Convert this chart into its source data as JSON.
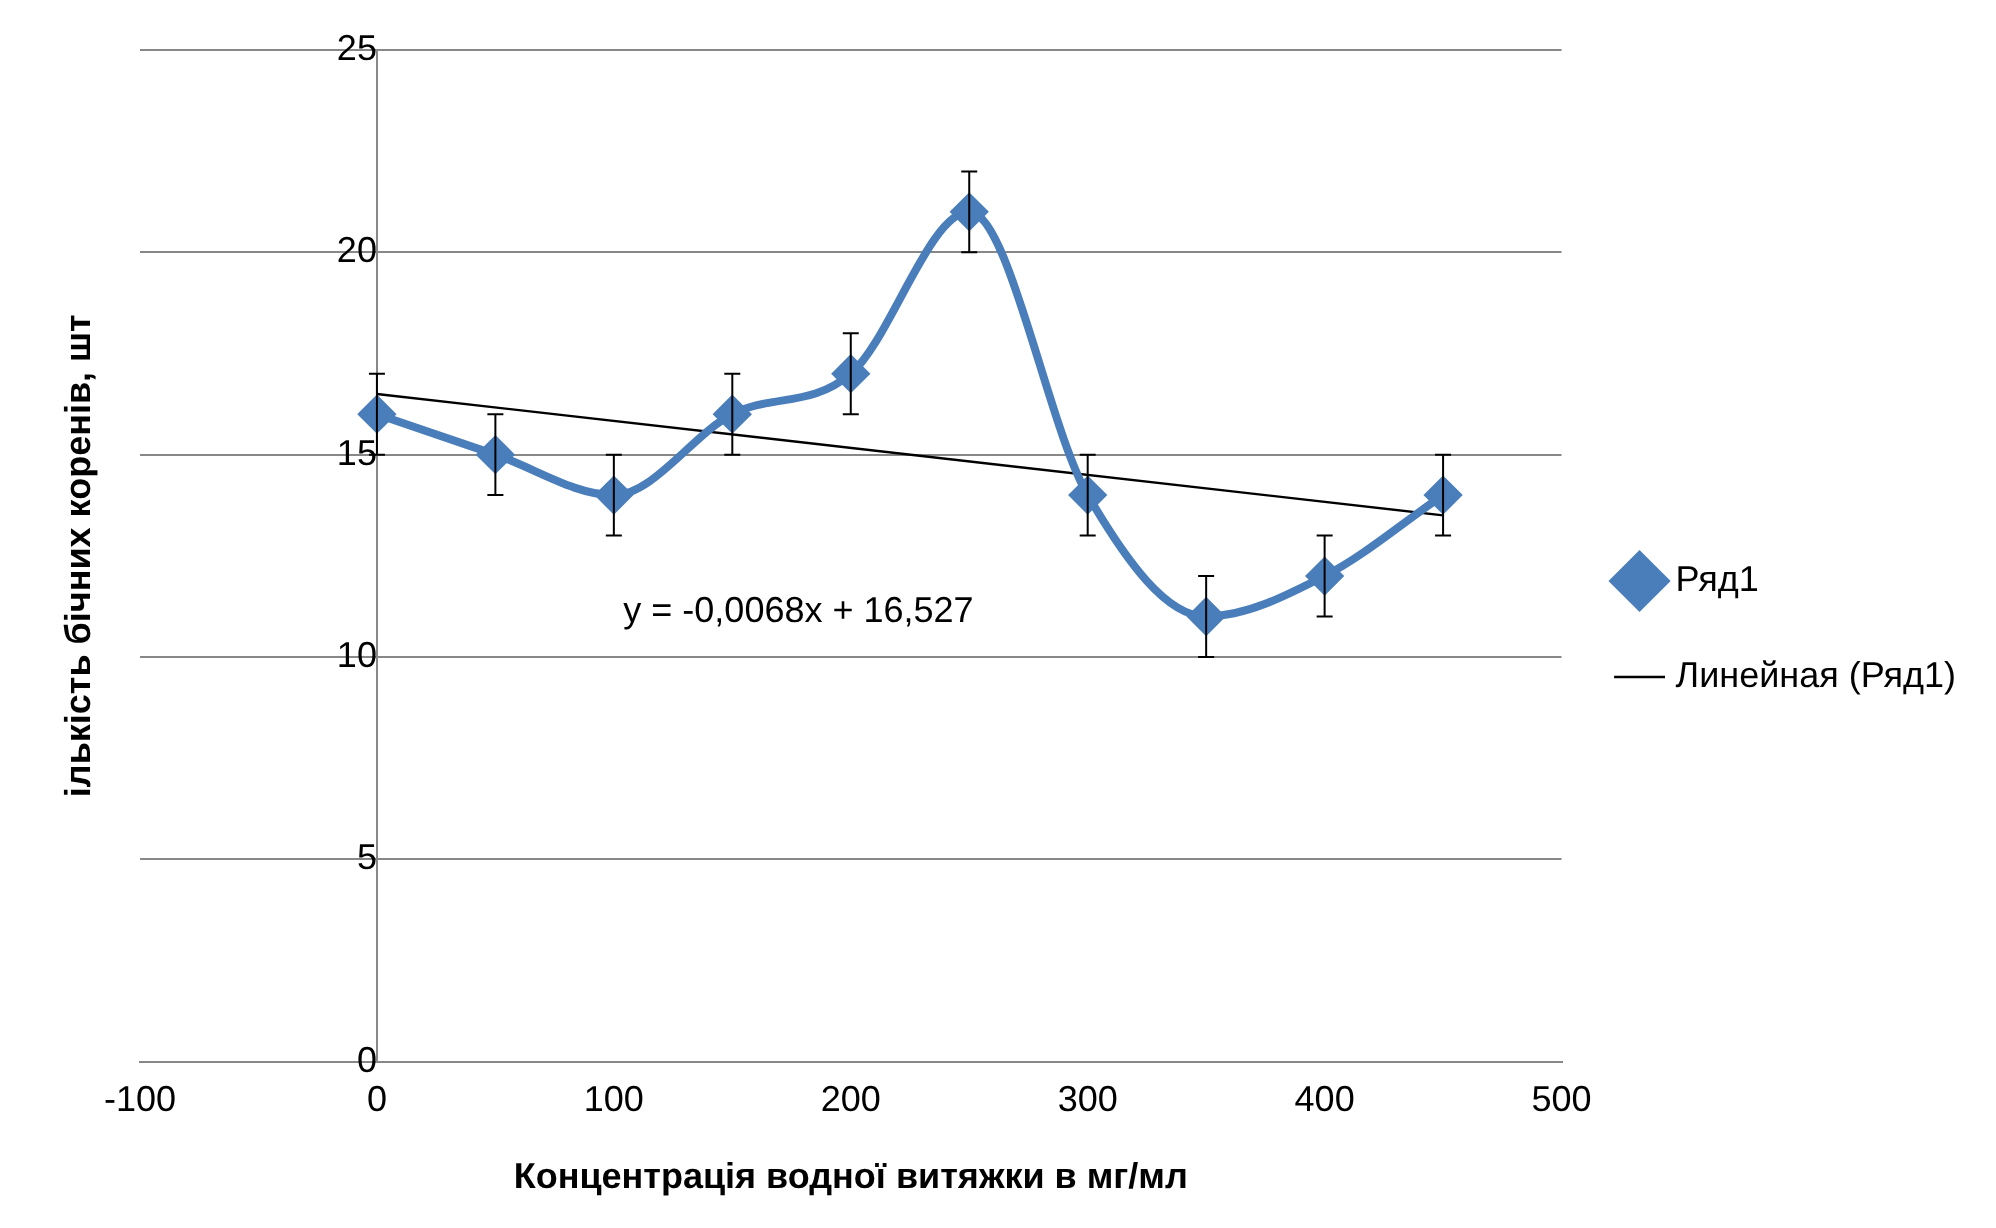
{
  "chart_data": {
    "type": "line",
    "xlabel": "Концентрація водної витяжки в мг/мл",
    "ylabel": "ількість бічних коренів, шт",
    "x": [
      0,
      50,
      100,
      150,
      200,
      250,
      300,
      350,
      400,
      450
    ],
    "series": [
      {
        "name": "Ряд1",
        "color": "#4a7ebb",
        "values": [
          16,
          15,
          14,
          16,
          17,
          21,
          14,
          11,
          12,
          14
        ],
        "errors": [
          1,
          1,
          1,
          1,
          1,
          1,
          1,
          1,
          1,
          1
        ],
        "marker": "diamond"
      },
      {
        "name": "Линейная (Ряд1)",
        "color": "#000000",
        "type": "line",
        "x": [
          0,
          450
        ],
        "values": [
          16.5,
          13.5
        ],
        "marker": "none"
      }
    ],
    "xlim": [
      -100,
      500
    ],
    "xticks": [
      -100,
      0,
      100,
      200,
      300,
      400,
      500
    ],
    "ylim": [
      0,
      25
    ],
    "yticks": [
      0,
      5,
      10,
      15,
      20,
      25
    ],
    "grid": "y",
    "legend": "right",
    "annotations": [
      "y = -0,0068x + 16,527"
    ]
  }
}
